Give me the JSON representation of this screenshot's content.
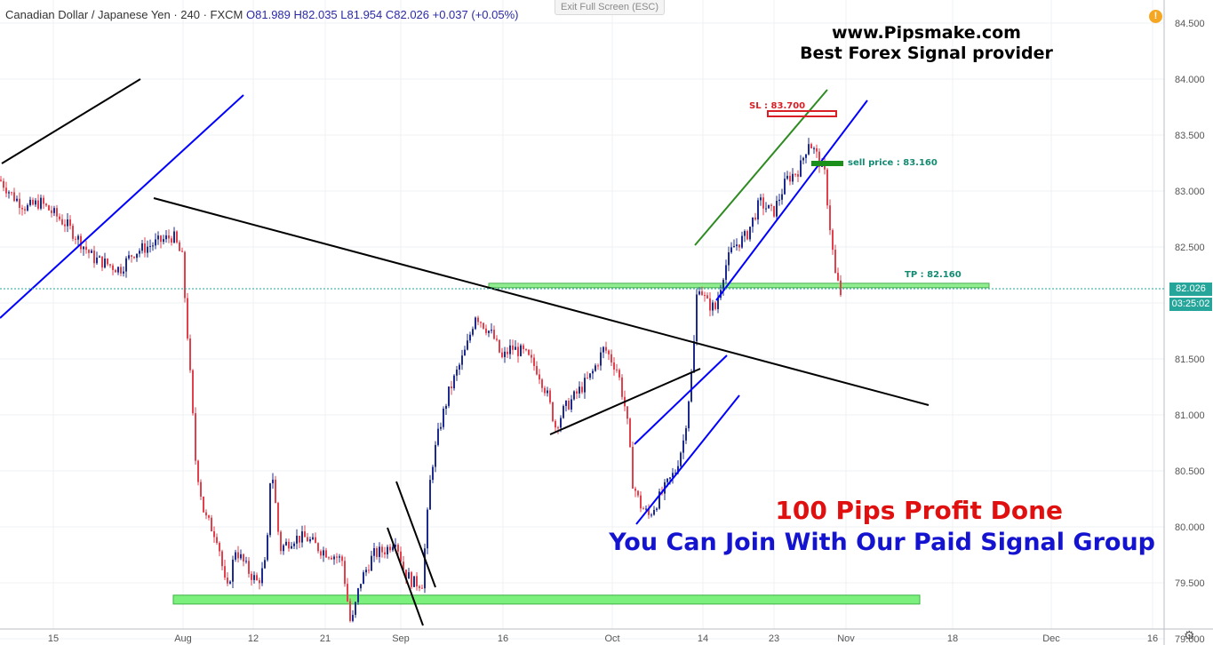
{
  "header": {
    "symbol": "Canadian Dollar / Japanese Yen · 240 · FXCM",
    "ohlc": "O81.989 H82.035 L81.954 C82.026 +0.037 (+0.05%)",
    "exit_fullscreen": "Exit Full Screen (ESC)",
    "warning_glyph": "!"
  },
  "brand": {
    "site": "www.Pipsmake.com",
    "tagline": "Best Forex Signal provider"
  },
  "promo": {
    "line1": "100 Pips Profit Done",
    "line2": "You Can Join With Our Paid Signal Group"
  },
  "annotations": {
    "sl": "SL : 83.700",
    "sell": "sell price : 83.160",
    "tp": "TP : 82.160"
  },
  "price_axis": {
    "last_price": "82.026",
    "countdown": "03:25:02"
  },
  "colors": {
    "up_candle": "#1d2b8f",
    "down_candle": "#e0414d",
    "sl_box": "#d81f26",
    "sell_bar": "#1a8f1a",
    "tp_band": "#90ee90",
    "support_band": "#7cf07c",
    "channel_blue": "#0000ff",
    "trend_black": "#000000",
    "channel_green": "#2e8b22",
    "last_price_tag": "#26a69a"
  },
  "chart_data": {
    "type": "candlestick",
    "title": "Canadian Dollar / Japanese Yen · 240 · FXCM",
    "y_ticks": [
      "84.500",
      "84.000",
      "83.500",
      "83.000",
      "82.500",
      "82.000",
      "81.500",
      "81.000",
      "80.500",
      "80.000",
      "79.500",
      "79.000"
    ],
    "x_ticks": [
      "15",
      "Aug",
      "12",
      "21",
      "Sep",
      "16",
      "Oct",
      "14",
      "23",
      "Nov",
      "18",
      "Dec",
      "16"
    ],
    "ylim": [
      78.95,
      84.65
    ],
    "grid": true,
    "levels": {
      "stop_loss": 83.7,
      "sell_price": 83.16,
      "take_profit": 82.16,
      "last_close": 82.026,
      "support_zone": 79.35
    },
    "close_path": [
      [
        0,
        83.1
      ],
      [
        15,
        82.95
      ],
      [
        30,
        82.85
      ],
      [
        45,
        82.9
      ],
      [
        60,
        82.8
      ],
      [
        75,
        82.7
      ],
      [
        90,
        82.55
      ],
      [
        105,
        82.4
      ],
      [
        120,
        82.35
      ],
      [
        135,
        82.3
      ],
      [
        150,
        82.45
      ],
      [
        165,
        82.5
      ],
      [
        180,
        82.55
      ],
      [
        195,
        82.6
      ],
      [
        205,
        82.4
      ],
      [
        212,
        81.6
      ],
      [
        220,
        80.6
      ],
      [
        230,
        80.1
      ],
      [
        245,
        79.9
      ],
      [
        255,
        79.4
      ],
      [
        265,
        79.8
      ],
      [
        280,
        79.6
      ],
      [
        290,
        79.5
      ],
      [
        300,
        79.7
      ],
      [
        305,
        80.6
      ],
      [
        315,
        79.8
      ],
      [
        330,
        79.9
      ],
      [
        345,
        79.9
      ],
      [
        360,
        79.8
      ],
      [
        375,
        79.75
      ],
      [
        385,
        79.7
      ],
      [
        395,
        79.1
      ],
      [
        405,
        79.5
      ],
      [
        420,
        79.75
      ],
      [
        435,
        79.8
      ],
      [
        445,
        79.9
      ],
      [
        455,
        79.6
      ],
      [
        465,
        79.5
      ],
      [
        475,
        79.5
      ],
      [
        485,
        80.5
      ],
      [
        495,
        80.9
      ],
      [
        505,
        81.2
      ],
      [
        515,
        81.4
      ],
      [
        525,
        81.6
      ],
      [
        535,
        81.9
      ],
      [
        545,
        81.8
      ],
      [
        555,
        81.7
      ],
      [
        565,
        81.5
      ],
      [
        575,
        81.6
      ],
      [
        590,
        81.55
      ],
      [
        605,
        81.4
      ],
      [
        615,
        81.2
      ],
      [
        625,
        80.9
      ],
      [
        635,
        81.05
      ],
      [
        650,
        81.2
      ],
      [
        665,
        81.35
      ],
      [
        680,
        81.6
      ],
      [
        695,
        81.4
      ],
      [
        705,
        81.0
      ],
      [
        712,
        80.4
      ],
      [
        720,
        80.2
      ],
      [
        730,
        80.1
      ],
      [
        745,
        80.3
      ],
      [
        760,
        80.5
      ],
      [
        770,
        80.8
      ],
      [
        780,
        81.5
      ],
      [
        785,
        82.2
      ],
      [
        795,
        82.0
      ],
      [
        805,
        81.95
      ],
      [
        815,
        82.3
      ],
      [
        825,
        82.5
      ],
      [
        840,
        82.6
      ],
      [
        855,
        82.9
      ],
      [
        870,
        82.8
      ],
      [
        885,
        83.1
      ],
      [
        900,
        83.2
      ],
      [
        910,
        83.45
      ],
      [
        920,
        83.3
      ],
      [
        928,
        83.15
      ],
      [
        935,
        82.6
      ],
      [
        940,
        82.25
      ],
      [
        948,
        82.03
      ]
    ]
  }
}
